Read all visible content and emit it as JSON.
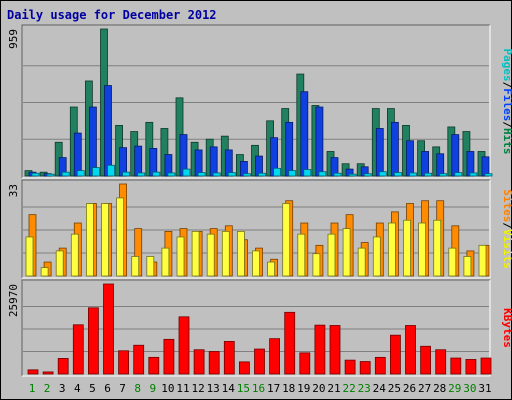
{
  "chart_data": {
    "type": "bar",
    "title": "Daily usage for December 2012",
    "days": [
      "1",
      "2",
      "3",
      "4",
      "5",
      "6",
      "7",
      "8",
      "9",
      "10",
      "11",
      "12",
      "13",
      "14",
      "15",
      "16",
      "17",
      "18",
      "19",
      "20",
      "21",
      "22",
      "23",
      "24",
      "25",
      "26",
      "27",
      "28",
      "29",
      "30",
      "31"
    ],
    "weekend_days": [
      1,
      2,
      8,
      9,
      15,
      16,
      22,
      23,
      29,
      30
    ],
    "panels": [
      {
        "name": "hits-files-pages",
        "max_label": "959",
        "ymax": 959,
        "legend": [
          "Pages",
          "/",
          "Files",
          "/",
          "Hits"
        ],
        "legend_colors": [
          "#00c0c0",
          "#000000",
          "#0040ff",
          "#000000",
          "#008040"
        ],
        "series": [
          {
            "name": "Hits",
            "color": "#208060",
            "values": [
              35,
              25,
              220,
              450,
              620,
              959,
              330,
              290,
              350,
              310,
              510,
              220,
              240,
              260,
              140,
              200,
              360,
              440,
              665,
              460,
              160,
              80,
              80,
              440,
              440,
              330,
              230,
              190,
              320,
              290,
              160
            ]
          },
          {
            "name": "Files",
            "color": "#1040e0",
            "values": [
              25,
              15,
              120,
              280,
              450,
              590,
              185,
              195,
              180,
              140,
              270,
              170,
              190,
              170,
              95,
              130,
              250,
              350,
              550,
              450,
              120,
              45,
              60,
              310,
              350,
              230,
              160,
              145,
              270,
              160,
              125
            ]
          },
          {
            "name": "Pages",
            "color": "#00d8f0",
            "values": [
              18,
              12,
              25,
              35,
              55,
              70,
              25,
              20,
              25,
              20,
              45,
              22,
              20,
              22,
              15,
              18,
              50,
              35,
              42,
              28,
              18,
              12,
              15,
              28,
              22,
              20,
              18,
              15,
              22,
              20,
              15
            ]
          }
        ]
      },
      {
        "name": "visits-sites",
        "max_label": "33",
        "ymax": 33,
        "legend": [
          "Sites",
          "/",
          "Visits"
        ],
        "legend_colors": [
          "#ff8000",
          "#000000",
          "#f0f000"
        ],
        "series": [
          {
            "name": "Visits",
            "color": "#ff8c00",
            "values": [
              22,
              5,
              10,
              19,
              26,
              26,
              33,
              17,
              5,
              16,
              17,
              16,
              17,
              18,
              13,
              10,
              6,
              27,
              19,
              11,
              19,
              22,
              12,
              19,
              23,
              26,
              27,
              27,
              18,
              9,
              11
            ]
          },
          {
            "name": "Sites",
            "color": "#ffff40",
            "values": [
              14,
              3,
              9,
              15,
              26,
              26,
              28,
              7,
              7,
              10,
              14,
              16,
              15,
              16,
              16,
              9,
              5,
              26,
              15,
              8,
              15,
              17,
              10,
              14,
              19,
              20,
              19,
              20,
              10,
              7,
              11
            ]
          }
        ]
      },
      {
        "name": "kbytes",
        "max_label": "25970",
        "ymax": 25970,
        "legend": [
          "KBytes"
        ],
        "legend_colors": [
          "#ff0000"
        ],
        "series": [
          {
            "name": "KBytes",
            "color": "#ff0000",
            "values": [
              1200,
              600,
              4500,
              14200,
              19100,
              25970,
              6700,
              8300,
              4800,
              10000,
              16500,
              7000,
              6500,
              9400,
              3500,
              7200,
              10200,
              17800,
              6100,
              14100,
              14000,
              4000,
              3600,
              4800,
              11200,
              14000,
              8000,
              7000,
              4600,
              4200,
              4600
            ]
          }
        ]
      }
    ]
  }
}
